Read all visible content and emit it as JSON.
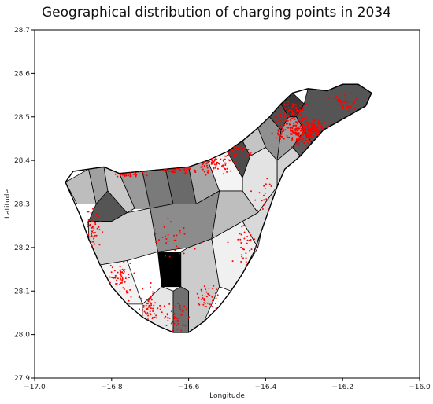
{
  "chart_data": {
    "type": "scatter",
    "title": "Geographical distribution of charging points in 2034",
    "xlabel": "Longitude",
    "ylabel": "Latitude",
    "xlim": [
      -17.0,
      -16.0
    ],
    "ylim": [
      27.9,
      28.7
    ],
    "xticks": [
      "−17.0",
      "−16.8",
      "−16.6",
      "−16.4",
      "−16.2",
      "−16.0"
    ],
    "yticks": [
      "27.9",
      "28.0",
      "28.1",
      "28.2",
      "28.3",
      "28.4",
      "28.5",
      "28.6",
      "28.7"
    ],
    "grid": false,
    "legend": "none",
    "point_color": "#ff0000",
    "island_outline": [
      [
        -16.92,
        28.35
      ],
      [
        -16.9,
        28.375
      ],
      [
        -16.86,
        28.38
      ],
      [
        -16.82,
        28.385
      ],
      [
        -16.78,
        28.37
      ],
      [
        -16.72,
        28.375
      ],
      [
        -16.66,
        28.38
      ],
      [
        -16.6,
        28.385
      ],
      [
        -16.55,
        28.4
      ],
      [
        -16.5,
        28.42
      ],
      [
        -16.46,
        28.445
      ],
      [
        -16.42,
        28.475
      ],
      [
        -16.39,
        28.5
      ],
      [
        -16.36,
        28.53
      ],
      [
        -16.33,
        28.555
      ],
      [
        -16.29,
        28.565
      ],
      [
        -16.24,
        28.56
      ],
      [
        -16.2,
        28.575
      ],
      [
        -16.16,
        28.575
      ],
      [
        -16.125,
        28.555
      ],
      [
        -16.14,
        28.525
      ],
      [
        -16.18,
        28.505
      ],
      [
        -16.22,
        28.485
      ],
      [
        -16.25,
        28.47
      ],
      [
        -16.28,
        28.44
      ],
      [
        -16.31,
        28.41
      ],
      [
        -16.35,
        28.38
      ],
      [
        -16.37,
        28.34
      ],
      [
        -16.39,
        28.29
      ],
      [
        -16.41,
        28.24
      ],
      [
        -16.43,
        28.19
      ],
      [
        -16.46,
        28.14
      ],
      [
        -16.49,
        28.1
      ],
      [
        -16.52,
        28.065
      ],
      [
        -16.56,
        28.03
      ],
      [
        -16.6,
        28.005
      ],
      [
        -16.64,
        28.005
      ],
      [
        -16.68,
        28.02
      ],
      [
        -16.72,
        28.04
      ],
      [
        -16.76,
        28.07
      ],
      [
        -16.8,
        28.11
      ],
      [
        -16.83,
        28.16
      ],
      [
        -16.86,
        28.22
      ],
      [
        -16.88,
        28.27
      ],
      [
        -16.9,
        28.31
      ]
    ],
    "municipalities": [
      {
        "fill": "#bdbdbd",
        "poly": [
          [
            -16.92,
            28.35
          ],
          [
            -16.86,
            28.38
          ],
          [
            -16.84,
            28.3
          ],
          [
            -16.89,
            28.3
          ]
        ]
      },
      {
        "fill": "#a0a0a0",
        "poly": [
          [
            -16.86,
            28.38
          ],
          [
            -16.82,
            28.385
          ],
          [
            -16.81,
            28.33
          ],
          [
            -16.84,
            28.3
          ]
        ]
      },
      {
        "fill": "#555555",
        "poly": [
          [
            -16.84,
            28.3
          ],
          [
            -16.81,
            28.33
          ],
          [
            -16.76,
            28.28
          ],
          [
            -16.8,
            28.26
          ],
          [
            -16.86,
            28.26
          ]
        ]
      },
      {
        "fill": "#c8c8c8",
        "poly": [
          [
            -16.82,
            28.385
          ],
          [
            -16.78,
            28.37
          ],
          [
            -16.74,
            28.29
          ],
          [
            -16.76,
            28.28
          ],
          [
            -16.81,
            28.33
          ]
        ]
      },
      {
        "fill": "#9a9a9a",
        "poly": [
          [
            -16.78,
            28.37
          ],
          [
            -16.72,
            28.375
          ],
          [
            -16.7,
            28.29
          ],
          [
            -16.74,
            28.29
          ]
        ]
      },
      {
        "fill": "#cfcfcf",
        "poly": [
          [
            -16.86,
            28.26
          ],
          [
            -16.8,
            28.26
          ],
          [
            -16.76,
            28.28
          ],
          [
            -16.7,
            28.29
          ],
          [
            -16.68,
            28.19
          ],
          [
            -16.76,
            28.17
          ],
          [
            -16.83,
            28.16
          ],
          [
            -16.86,
            28.22
          ]
        ]
      },
      {
        "fill": "#7a7a7a",
        "poly": [
          [
            -16.72,
            28.375
          ],
          [
            -16.66,
            28.38
          ],
          [
            -16.64,
            28.3
          ],
          [
            -16.7,
            28.29
          ]
        ]
      },
      {
        "fill": "#6a6a6a",
        "poly": [
          [
            -16.66,
            28.38
          ],
          [
            -16.6,
            28.385
          ],
          [
            -16.58,
            28.3
          ],
          [
            -16.64,
            28.3
          ]
        ]
      },
      {
        "fill": "#a8a8a8",
        "poly": [
          [
            -16.6,
            28.385
          ],
          [
            -16.55,
            28.4
          ],
          [
            -16.52,
            28.33
          ],
          [
            -16.58,
            28.3
          ]
        ]
      },
      {
        "fill": "#8c8c8c",
        "poly": [
          [
            -16.64,
            28.3
          ],
          [
            -16.58,
            28.3
          ],
          [
            -16.52,
            28.33
          ],
          [
            -16.54,
            28.22
          ],
          [
            -16.6,
            28.2
          ],
          [
            -16.68,
            28.19
          ],
          [
            -16.7,
            28.29
          ]
        ]
      },
      {
        "fill": "#f2f2f2",
        "poly": [
          [
            -16.83,
            28.16
          ],
          [
            -16.76,
            28.17
          ],
          [
            -16.72,
            28.07
          ],
          [
            -16.76,
            28.07
          ],
          [
            -16.8,
            28.11
          ]
        ]
      },
      {
        "fill": "#000000",
        "poly": [
          [
            -16.68,
            28.19
          ],
          [
            -16.62,
            28.19
          ],
          [
            -16.62,
            28.11
          ],
          [
            -16.67,
            28.11
          ]
        ]
      },
      {
        "fill": "#e6e6e6",
        "poly": [
          [
            -16.72,
            28.07
          ],
          [
            -16.67,
            28.11
          ],
          [
            -16.64,
            28.1
          ],
          [
            -16.64,
            28.005
          ],
          [
            -16.68,
            28.02
          ],
          [
            -16.72,
            28.04
          ]
        ]
      },
      {
        "fill": "#707070",
        "poly": [
          [
            -16.62,
            28.11
          ],
          [
            -16.6,
            28.1
          ],
          [
            -16.6,
            28.005
          ],
          [
            -16.64,
            28.005
          ],
          [
            -16.64,
            28.1
          ]
        ]
      },
      {
        "fill": "#cccccc",
        "poly": [
          [
            -16.62,
            28.19
          ],
          [
            -16.6,
            28.2
          ],
          [
            -16.54,
            28.22
          ],
          [
            -16.52,
            28.11
          ],
          [
            -16.56,
            28.03
          ],
          [
            -16.6,
            28.005
          ],
          [
            -16.6,
            28.1
          ],
          [
            -16.62,
            28.11
          ]
        ]
      },
      {
        "fill": "#f0f0f0",
        "poly": [
          [
            -16.54,
            28.22
          ],
          [
            -16.46,
            28.26
          ],
          [
            -16.42,
            28.2
          ],
          [
            -16.46,
            28.14
          ],
          [
            -16.49,
            28.1
          ],
          [
            -16.52,
            28.11
          ]
        ]
      },
      {
        "fill": "#bebebe",
        "poly": [
          [
            -16.52,
            28.33
          ],
          [
            -16.46,
            28.33
          ],
          [
            -16.42,
            28.28
          ],
          [
            -16.46,
            28.26
          ],
          [
            -16.54,
            28.22
          ]
        ]
      },
      {
        "fill": "#d9d9d9",
        "poly": [
          [
            -16.46,
            28.26
          ],
          [
            -16.42,
            28.28
          ],
          [
            -16.37,
            28.34
          ],
          [
            -16.39,
            28.29
          ],
          [
            -16.41,
            28.24
          ],
          [
            -16.42,
            28.2
          ]
        ]
      },
      {
        "fill": "#f4f4f4",
        "poly": [
          [
            -16.52,
            28.33
          ],
          [
            -16.55,
            28.4
          ],
          [
            -16.5,
            28.42
          ],
          [
            -16.46,
            28.36
          ],
          [
            -16.46,
            28.33
          ]
        ]
      },
      {
        "fill": "#4c4c4c",
        "poly": [
          [
            -16.5,
            28.42
          ],
          [
            -16.46,
            28.445
          ],
          [
            -16.44,
            28.41
          ],
          [
            -16.46,
            28.36
          ]
        ]
      },
      {
        "fill": "#c4c4c4",
        "poly": [
          [
            -16.46,
            28.445
          ],
          [
            -16.42,
            28.475
          ],
          [
            -16.4,
            28.43
          ],
          [
            -16.44,
            28.41
          ]
        ]
      },
      {
        "fill": "#e3e3e3",
        "poly": [
          [
            -16.46,
            28.36
          ],
          [
            -16.44,
            28.41
          ],
          [
            -16.4,
            28.43
          ],
          [
            -16.37,
            28.4
          ],
          [
            -16.37,
            28.34
          ],
          [
            -16.42,
            28.28
          ],
          [
            -16.46,
            28.33
          ]
        ]
      },
      {
        "fill": "#909090",
        "poly": [
          [
            -16.42,
            28.475
          ],
          [
            -16.39,
            28.5
          ],
          [
            -16.36,
            28.47
          ],
          [
            -16.37,
            28.4
          ],
          [
            -16.4,
            28.43
          ]
        ]
      },
      {
        "fill": "#505050",
        "poly": [
          [
            -16.39,
            28.5
          ],
          [
            -16.36,
            28.53
          ],
          [
            -16.34,
            28.5
          ],
          [
            -16.36,
            28.47
          ]
        ]
      },
      {
        "fill": "#3a3a3a",
        "poly": [
          [
            -16.36,
            28.53
          ],
          [
            -16.33,
            28.555
          ],
          [
            -16.3,
            28.53
          ],
          [
            -16.32,
            28.5
          ],
          [
            -16.34,
            28.5
          ]
        ]
      },
      {
        "fill": "#9e9e9e",
        "poly": [
          [
            -16.34,
            28.5
          ],
          [
            -16.32,
            28.5
          ],
          [
            -16.3,
            28.47
          ],
          [
            -16.33,
            28.43
          ],
          [
            -16.37,
            28.4
          ],
          [
            -16.36,
            28.47
          ]
        ]
      },
      {
        "fill": "#5c5c5c",
        "poly": [
          [
            -16.33,
            28.43
          ],
          [
            -16.3,
            28.47
          ],
          [
            -16.28,
            28.44
          ],
          [
            -16.31,
            28.41
          ]
        ]
      },
      {
        "fill": "#d2d2d2",
        "poly": [
          [
            -16.37,
            28.4
          ],
          [
            -16.33,
            28.43
          ],
          [
            -16.31,
            28.41
          ],
          [
            -16.35,
            28.38
          ],
          [
            -16.37,
            28.34
          ]
        ]
      },
      {
        "fill": "#555555",
        "poly": [
          [
            -16.3,
            28.53
          ],
          [
            -16.29,
            28.565
          ],
          [
            -16.24,
            28.56
          ],
          [
            -16.2,
            28.575
          ],
          [
            -16.16,
            28.575
          ],
          [
            -16.125,
            28.555
          ],
          [
            -16.14,
            28.525
          ],
          [
            -16.18,
            28.505
          ],
          [
            -16.22,
            28.485
          ],
          [
            -16.25,
            28.47
          ],
          [
            -16.28,
            28.44
          ],
          [
            -16.3,
            28.47
          ],
          [
            -16.32,
            28.5
          ]
        ]
      }
    ],
    "point_clusters": [
      {
        "center": [
          -16.31,
          28.465
        ],
        "spread": [
          0.04,
          0.03
        ],
        "n": 160
      },
      {
        "center": [
          -16.27,
          28.47
        ],
        "spread": [
          0.03,
          0.02
        ],
        "n": 110
      },
      {
        "center": [
          -16.33,
          28.51
        ],
        "spread": [
          0.03,
          0.025
        ],
        "n": 70
      },
      {
        "center": [
          -16.36,
          28.48
        ],
        "spread": [
          0.02,
          0.03
        ],
        "n": 40
      },
      {
        "center": [
          -16.53,
          28.39
        ],
        "spread": [
          0.05,
          0.02
        ],
        "n": 70
      },
      {
        "center": [
          -16.47,
          28.42
        ],
        "spread": [
          0.03,
          0.015
        ],
        "n": 35
      },
      {
        "center": [
          -16.62,
          28.38
        ],
        "spread": [
          0.05,
          0.012
        ],
        "n": 40
      },
      {
        "center": [
          -16.75,
          28.37
        ],
        "spread": [
          0.05,
          0.012
        ],
        "n": 25
      },
      {
        "center": [
          -16.85,
          28.24
        ],
        "spread": [
          0.02,
          0.05
        ],
        "n": 50
      },
      {
        "center": [
          -16.78,
          28.13
        ],
        "spread": [
          0.04,
          0.04
        ],
        "n": 60
      },
      {
        "center": [
          -16.7,
          28.06
        ],
        "spread": [
          0.03,
          0.04
        ],
        "n": 60
      },
      {
        "center": [
          -16.63,
          28.04
        ],
        "spread": [
          0.03,
          0.03
        ],
        "n": 50
      },
      {
        "center": [
          -16.55,
          28.09
        ],
        "spread": [
          0.03,
          0.03
        ],
        "n": 40
      },
      {
        "center": [
          -16.45,
          28.2
        ],
        "spread": [
          0.04,
          0.05
        ],
        "n": 35
      },
      {
        "center": [
          -16.2,
          28.53
        ],
        "spread": [
          0.04,
          0.02
        ],
        "n": 40
      },
      {
        "center": [
          -16.4,
          28.32
        ],
        "spread": [
          0.03,
          0.04
        ],
        "n": 20
      },
      {
        "center": [
          -16.65,
          28.22
        ],
        "spread": [
          0.06,
          0.05
        ],
        "n": 30
      }
    ]
  }
}
